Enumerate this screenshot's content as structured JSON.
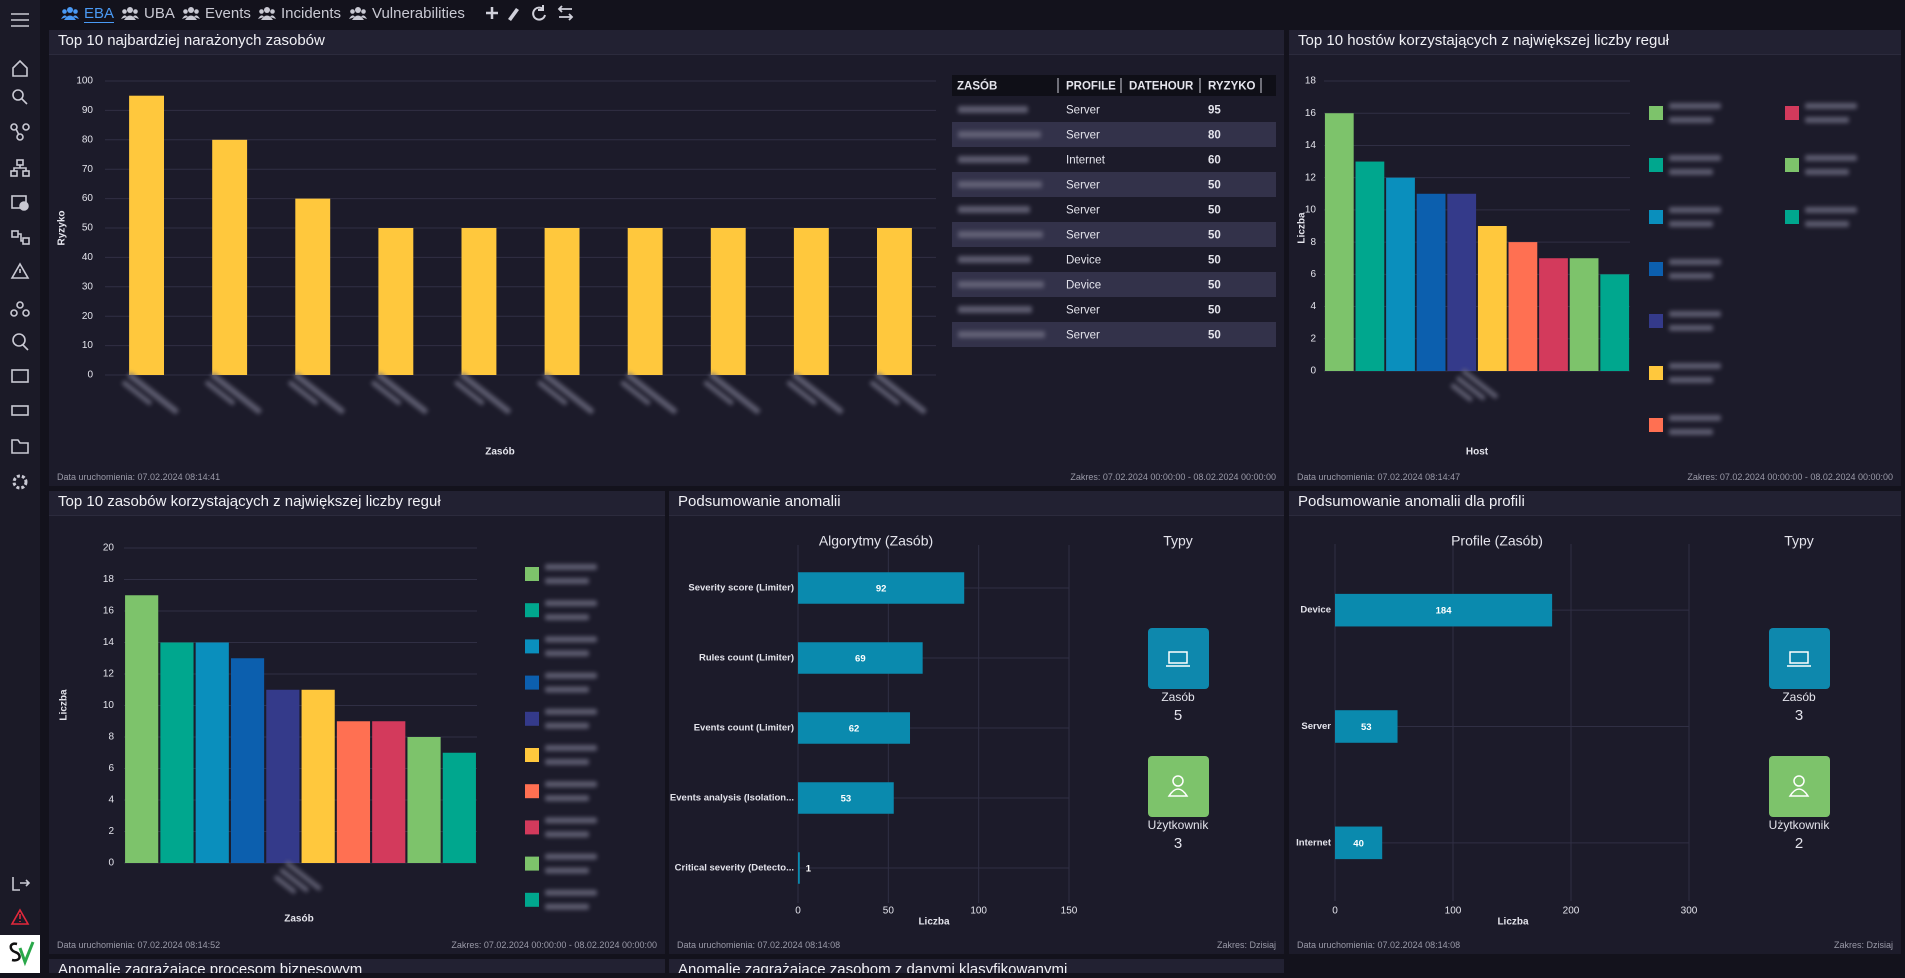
{
  "tabs": [
    "EBA",
    "UBA",
    "Events",
    "Incidents",
    "Vulnerabilities"
  ],
  "panels": [
    {
      "title": "Top 10 najbardziej narażonych zasobów",
      "run": "Data uruchomienia: 07.02.2024 08:14:41",
      "range": "Zakres: 07.02.2024 00:00:00 - 08.02.2024 00:00:00"
    },
    {
      "title": "Top 10 hostów korzystających z największej liczby reguł",
      "run": "Data uruchomienia: 07.02.2024 08:14:47",
      "range": "Zakres: 07.02.2024 00:00:00 - 08.02.2024 00:00:00"
    },
    {
      "title": "Top 10 zasobów korzystających z największej liczby reguł",
      "run": "Data uruchomienia: 07.02.2024 08:14:52",
      "range": "Zakres: 07.02.2024 00:00:00 - 08.02.2024 00:00:00"
    },
    {
      "title": "Podsumowanie anomalii",
      "run": "Data uruchomienia: 07.02.2024 08:14:08",
      "range": "Zakres: Dzisiaj",
      "types_title": "Typy",
      "types": [
        {
          "label": "Zasób",
          "count": 5,
          "color": "#0e88ad"
        },
        {
          "label": "Użytkownik",
          "count": 3,
          "color": "#7dc36b"
        }
      ]
    },
    {
      "title": "Podsumowanie anomalii dla profili",
      "run": "Data uruchomienia: 07.02.2024 08:14:08",
      "range": "Zakres: Dzisiaj",
      "types_title": "Typy",
      "types": [
        {
          "label": "Zasób",
          "count": 3,
          "color": "#0e88ad"
        },
        {
          "label": "Użytkownik",
          "count": 2,
          "color": "#7dc36b"
        }
      ]
    },
    {
      "title": "Anomalie zagrażające procesom biznesowym"
    },
    {
      "title": "Anomalie zagrażające zasobom z danymi klasyfikowanymi"
    }
  ],
  "table": {
    "columns": [
      "ZASÓB",
      "PROFILE",
      "DATEHOUR",
      "RYZYKO"
    ],
    "rows": [
      [
        null,
        "Server",
        null,
        95
      ],
      [
        null,
        "Server",
        null,
        80
      ],
      [
        null,
        "Internet",
        null,
        60
      ],
      [
        null,
        "Server",
        null,
        50
      ],
      [
        null,
        "Server",
        null,
        50
      ],
      [
        null,
        "Server",
        null,
        50
      ],
      [
        null,
        "Device",
        null,
        50
      ],
      [
        null,
        "Device",
        null,
        50
      ],
      [
        null,
        "Server",
        null,
        50
      ],
      [
        null,
        "Server",
        null,
        50
      ]
    ]
  },
  "chart_data": [
    {
      "type": "bar",
      "xlabel": "Zasób",
      "ylabel": "Ryzyko",
      "categories": [
        null,
        null,
        null,
        null,
        null,
        null,
        null,
        null,
        null,
        null
      ],
      "values": [
        95,
        80,
        60,
        50,
        50,
        50,
        50,
        50,
        50,
        50
      ],
      "color": "#ffc83d",
      "ylim": [
        0,
        100
      ],
      "yticks": [
        0,
        10,
        20,
        30,
        40,
        50,
        60,
        70,
        80,
        90,
        100
      ],
      "grid": true
    },
    {
      "type": "bar",
      "xlabel": "Host",
      "ylabel": "Liczba",
      "categories": [
        null,
        null,
        null,
        null,
        null,
        null,
        null,
        null,
        null,
        null
      ],
      "values": [
        16,
        13,
        12,
        11,
        11,
        9,
        8,
        7,
        7,
        6
      ],
      "colors": [
        "#7dc36b",
        "#00a78e",
        "#0a8fbd",
        "#0c5fae",
        "#343a8a",
        "#ffc83d",
        "#ff7052",
        "#d33a5c",
        "#7dc36b",
        "#00a78e"
      ],
      "ylim": [
        0,
        18
      ],
      "yticks": [
        0,
        2,
        4,
        6,
        8,
        10,
        12,
        14,
        16,
        18
      ],
      "grid": true,
      "legend": "right"
    },
    {
      "type": "bar",
      "xlabel": "Zasób",
      "ylabel": "Liczba",
      "categories": [
        null,
        null,
        null,
        null,
        null,
        null,
        null,
        null,
        null,
        null
      ],
      "values": [
        17,
        14,
        14,
        13,
        11,
        11,
        9,
        9,
        8,
        7
      ],
      "colors": [
        "#7dc36b",
        "#00a78e",
        "#0a8fbd",
        "#0c5fae",
        "#343a8a",
        "#ffc83d",
        "#ff7052",
        "#d33a5c",
        "#7dc36b",
        "#00a78e"
      ],
      "ylim": [
        0,
        20
      ],
      "yticks": [
        0,
        2,
        4,
        6,
        8,
        10,
        12,
        14,
        16,
        18,
        20
      ],
      "grid": true,
      "legend": "right"
    },
    {
      "type": "hbar",
      "title": "Algorytmy (Zasób)",
      "xlabel": "Liczba",
      "categories": [
        "Severity score (Limiter)",
        "Rules count (Limiter)",
        "Events count (Limiter)",
        "Events analysis (Isolation...",
        "Critical severity (Detecto..."
      ],
      "values": [
        92,
        69,
        62,
        53,
        1
      ],
      "color": "#0a8aae",
      "xlim": [
        0,
        150
      ],
      "xticks": [
        0,
        50,
        100,
        150
      ],
      "grid": true
    },
    {
      "type": "hbar",
      "title": "Profile (Zasób)",
      "xlabel": "Liczba",
      "categories": [
        "Device",
        "Server",
        "Internet"
      ],
      "values": [
        184,
        53,
        40
      ],
      "color": "#0a8aae",
      "xlim": [
        0,
        300
      ],
      "xticks": [
        0,
        100,
        200,
        300
      ],
      "grid": true
    }
  ]
}
